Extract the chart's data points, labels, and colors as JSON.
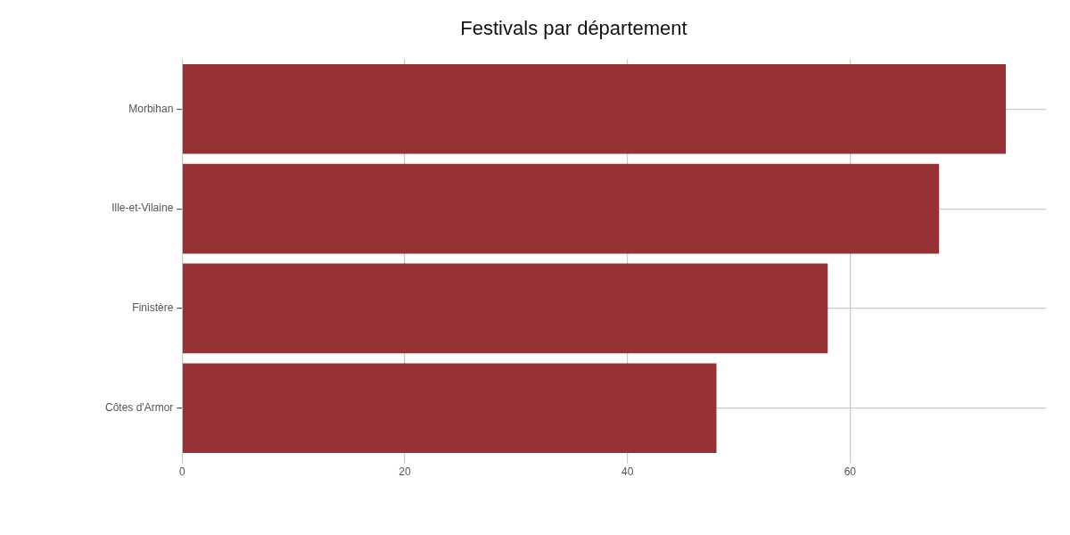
{
  "chart_data": {
    "type": "bar",
    "orientation": "horizontal",
    "title": "Festivals par département",
    "categories": [
      "Morbihan",
      "Ille-et-Vilaine",
      "Finistère",
      "Côtes d'Armor"
    ],
    "values": [
      74,
      68,
      58,
      48
    ],
    "color": "#963235",
    "xlim": [
      0,
      77.6
    ],
    "xticks": [
      0,
      20,
      40,
      60
    ],
    "grid": true,
    "legend": false
  }
}
